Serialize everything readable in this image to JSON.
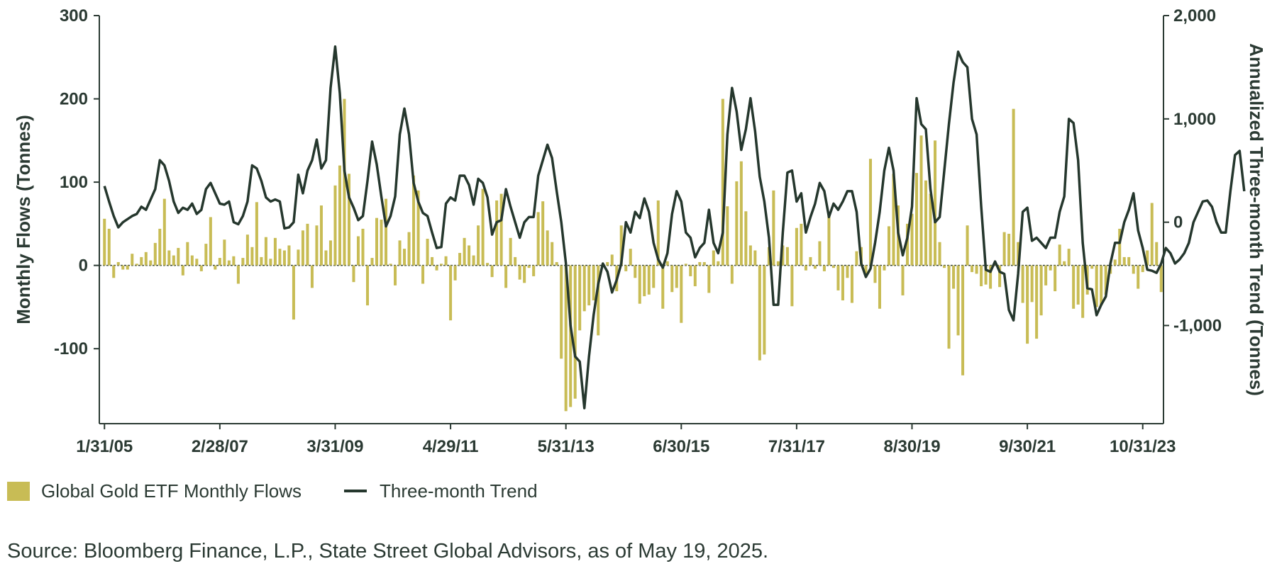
{
  "colors": {
    "bar": "#c8bc55",
    "line": "#25372d",
    "text": "#2b3a33",
    "axis": "#2b3a33"
  },
  "legend": {
    "bars_label": "Global Gold ETF Monthly Flows",
    "line_label": "Three-month Trend"
  },
  "source": "Source: Bloomberg Finance, L.P., State Street Global Advisors, as of May 19, 2025.",
  "chart_data": {
    "type": "bar+line",
    "title": "",
    "ylabel_left": "Monthly Flows (Tonnes)",
    "ylabel_right": "Annualized Three-month Trend (Tonnes)",
    "ylim_left": [
      -190,
      300
    ],
    "ylim_right": [
      -1950,
      2000
    ],
    "yticks_left": [
      300,
      200,
      100,
      0,
      -100
    ],
    "yticks_left_labels": [
      "300",
      "200",
      "100",
      "0",
      "-100"
    ],
    "yticks_right": [
      2000,
      1000,
      0,
      -1000
    ],
    "yticks_right_labels": [
      "2,000",
      "1,000",
      "0",
      "-1,000"
    ],
    "x_tick_labels": [
      "1/31/05",
      "2/28/07",
      "3/31/09",
      "4/29/11",
      "5/31/13",
      "6/30/15",
      "7/31/17",
      "8/30/19",
      "9/30/21",
      "10/31/23"
    ],
    "x_tick_index": [
      0,
      25,
      50,
      75,
      100,
      125,
      150,
      175,
      200,
      225
    ],
    "series": [
      {
        "name": "Global Gold ETF Monthly Flows",
        "axis": "left",
        "kind": "bar",
        "values": [
          56,
          44,
          -15,
          4,
          -5,
          -5,
          14,
          2,
          10,
          16,
          6,
          27,
          44,
          80,
          18,
          12,
          21,
          -12,
          28,
          12,
          8,
          -7,
          26,
          58,
          -5,
          9,
          31,
          6,
          11,
          -22,
          9,
          37,
          22,
          76,
          10,
          34,
          8,
          33,
          20,
          18,
          24,
          -65,
          19,
          42,
          50,
          -27,
          48,
          72,
          18,
          30,
          96,
          120,
          200,
          110,
          -20,
          35,
          44,
          -48,
          9,
          57,
          55,
          80,
          2,
          -24,
          30,
          20,
          40,
          108,
          90,
          -22,
          32,
          10,
          -6,
          2,
          11,
          -66,
          -18,
          15,
          33,
          24,
          12,
          48,
          92,
          3,
          -14,
          78,
          86,
          -27,
          33,
          10,
          -17,
          -21,
          -3,
          -13,
          64,
          77,
          42,
          28,
          4,
          -112,
          -175,
          -170,
          -160,
          -78,
          -55,
          -48,
          -42,
          -84,
          0,
          4,
          13,
          -31,
          48,
          -7,
          20,
          -15,
          -46,
          -37,
          -35,
          -27,
          78,
          -52,
          5,
          -32,
          -27,
          -69,
          2,
          -13,
          -25,
          4,
          4,
          -33,
          18,
          5,
          200,
          71,
          -22,
          101,
          125,
          65,
          24,
          18,
          -114,
          -107,
          22,
          90,
          5,
          24,
          22,
          -49,
          45,
          50,
          -6,
          10,
          -4,
          29,
          -7,
          60,
          -3,
          -30,
          -42,
          -15,
          -45,
          17,
          22,
          -12,
          128,
          -21,
          -52,
          -6,
          47,
          110,
          72,
          -36,
          50,
          62,
          111,
          156,
          102,
          86,
          150,
          28,
          -3,
          -100,
          -28,
          -84,
          -132,
          48,
          -8,
          -10,
          -25,
          -23,
          -28,
          4,
          -26,
          40,
          38,
          188,
          28,
          -45,
          -94,
          -44,
          -88,
          -60,
          -24,
          -6,
          -31,
          25,
          5,
          20,
          -52,
          -47,
          -63,
          -35,
          -4,
          -50,
          -48,
          -35,
          -10,
          7,
          44,
          10,
          10,
          -10,
          -28,
          -8,
          18,
          75,
          28,
          -32
        ]
      },
      {
        "name": "Three-month Trend",
        "axis": "right",
        "kind": "line",
        "values": [
          350,
          200,
          60,
          -50,
          0,
          30,
          60,
          80,
          150,
          120,
          220,
          320,
          600,
          550,
          400,
          200,
          90,
          140,
          120,
          180,
          80,
          120,
          320,
          380,
          280,
          180,
          170,
          200,
          0,
          -20,
          60,
          200,
          550,
          520,
          400,
          240,
          200,
          220,
          200,
          -60,
          -50,
          0,
          460,
          280,
          500,
          600,
          800,
          520,
          600,
          1300,
          1700,
          1250,
          500,
          240,
          140,
          20,
          60,
          400,
          780,
          560,
          250,
          -40,
          60,
          250,
          850,
          1100,
          850,
          380,
          200,
          90,
          60,
          -100,
          -250,
          -240,
          180,
          240,
          210,
          450,
          450,
          360,
          170,
          420,
          380,
          240,
          -120,
          0,
          20,
          320,
          150,
          0,
          -150,
          0,
          50,
          50,
          450,
          600,
          750,
          620,
          300,
          0,
          -400,
          -1000,
          -1300,
          -1350,
          -1800,
          -1300,
          -900,
          -600,
          -400,
          -480,
          -680,
          -560,
          -400,
          0,
          -100,
          100,
          40,
          230,
          100,
          -200,
          -360,
          -440,
          -300,
          80,
          300,
          200,
          -100,
          -150,
          -340,
          -250,
          -200,
          120,
          -200,
          -300,
          -100,
          850,
          1300,
          1070,
          700,
          900,
          1200,
          880,
          440,
          200,
          -150,
          -800,
          -800,
          -100,
          480,
          500,
          200,
          280,
          -100,
          50,
          180,
          380,
          300,
          50,
          180,
          120,
          200,
          300,
          300,
          100,
          -400,
          -530,
          -450,
          -200,
          100,
          500,
          720,
          500,
          -100,
          -320,
          -150,
          150,
          1200,
          950,
          900,
          320,
          0,
          50,
          500,
          950,
          1350,
          1650,
          1550,
          1500,
          1000,
          850,
          150,
          -460,
          -480,
          -380,
          -480,
          -500,
          -850,
          -950,
          -500,
          100,
          140,
          -180,
          -150,
          -200,
          -250,
          -150,
          -150,
          100,
          250,
          1000,
          960,
          600,
          -200,
          -640,
          -650,
          -900,
          -800,
          -720,
          -400,
          -200,
          -200,
          0,
          120,
          280,
          -80,
          -250,
          -460,
          -470,
          -490,
          -400,
          -250,
          -300,
          -400,
          -360,
          -300,
          -200,
          0,
          100,
          200,
          210,
          150,
          0,
          -100,
          -100,
          300,
          650,
          690,
          300
        ]
      }
    ]
  }
}
